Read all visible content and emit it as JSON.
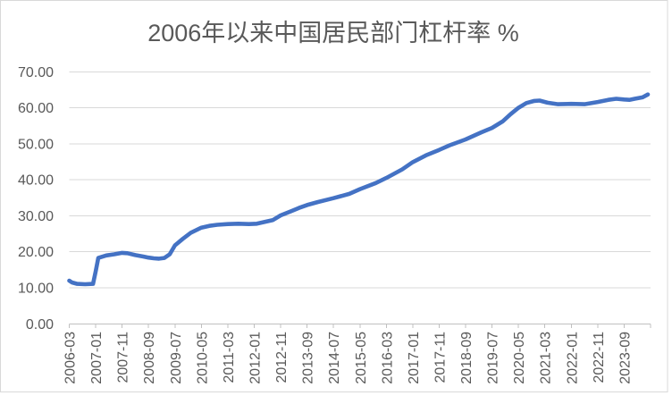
{
  "chart_data": {
    "type": "line",
    "title": "2006年以来中国居民部门杠杆率 %",
    "xlabel": "",
    "ylabel": "",
    "ylim": [
      0,
      70
    ],
    "y_step": 10,
    "y_tick_labels": [
      "0.00",
      "10.00",
      "20.00",
      "30.00",
      "40.00",
      "50.00",
      "60.00",
      "70.00"
    ],
    "x_tick_labels": [
      "2006-03",
      "2007-01",
      "2007-11",
      "2008-09",
      "2009-07",
      "2010-05",
      "2011-03",
      "2012-01",
      "2012-11",
      "2013-09",
      "2014-07",
      "2015-05",
      "2016-03",
      "2017-01",
      "2017-11",
      "2018-09",
      "2019-07",
      "2020-05",
      "2021-03",
      "2022-01",
      "2022-11",
      "2023-09"
    ],
    "x_label_interval_months": 10,
    "x_axis_start": "2006-03",
    "x_axis_end": "2024-07",
    "grid": "horizontal",
    "legend": false,
    "series": [
      {
        "points": [
          [
            "2006-03",
            12.0
          ],
          [
            "2006-04",
            11.5
          ],
          [
            "2006-06",
            11.1
          ],
          [
            "2006-09",
            11.0
          ],
          [
            "2006-12",
            11.1
          ],
          [
            "2007-01",
            14.6
          ],
          [
            "2007-02",
            18.3
          ],
          [
            "2007-05",
            19.0
          ],
          [
            "2007-08",
            19.3
          ],
          [
            "2007-11",
            19.7
          ],
          [
            "2008-01",
            19.6
          ],
          [
            "2008-04",
            19.1
          ],
          [
            "2008-07",
            18.7
          ],
          [
            "2008-09",
            18.4
          ],
          [
            "2008-11",
            18.2
          ],
          [
            "2009-01",
            18.1
          ],
          [
            "2009-03",
            18.3
          ],
          [
            "2009-05",
            19.3
          ],
          [
            "2009-07",
            21.8
          ],
          [
            "2009-10",
            23.6
          ],
          [
            "2010-01",
            25.3
          ],
          [
            "2010-05",
            26.7
          ],
          [
            "2010-08",
            27.2
          ],
          [
            "2010-11",
            27.5
          ],
          [
            "2011-03",
            27.7
          ],
          [
            "2011-07",
            27.8
          ],
          [
            "2011-11",
            27.7
          ],
          [
            "2012-02",
            27.8
          ],
          [
            "2012-05",
            28.3
          ],
          [
            "2012-08",
            28.8
          ],
          [
            "2012-11",
            30.1
          ],
          [
            "2013-03",
            31.3
          ],
          [
            "2013-06",
            32.2
          ],
          [
            "2013-09",
            33.0
          ],
          [
            "2014-01",
            33.8
          ],
          [
            "2014-07",
            34.9
          ],
          [
            "2015-01",
            36.1
          ],
          [
            "2015-05",
            37.4
          ],
          [
            "2015-11",
            39.1
          ],
          [
            "2016-03",
            40.5
          ],
          [
            "2016-09",
            42.9
          ],
          [
            "2017-01",
            44.9
          ],
          [
            "2017-06",
            46.8
          ],
          [
            "2017-11",
            48.3
          ],
          [
            "2018-03",
            49.6
          ],
          [
            "2018-09",
            51.2
          ],
          [
            "2019-03",
            53.2
          ],
          [
            "2019-07",
            54.4
          ],
          [
            "2019-11",
            56.2
          ],
          [
            "2020-02",
            58.2
          ],
          [
            "2020-05",
            60.0
          ],
          [
            "2020-08",
            61.3
          ],
          [
            "2020-11",
            61.9
          ],
          [
            "2021-01",
            62.0
          ],
          [
            "2021-04",
            61.4
          ],
          [
            "2021-08",
            61.0
          ],
          [
            "2022-01",
            61.1
          ],
          [
            "2022-06",
            61.0
          ],
          [
            "2022-11",
            61.6
          ],
          [
            "2023-03",
            62.2
          ],
          [
            "2023-06",
            62.5
          ],
          [
            "2023-09",
            62.3
          ],
          [
            "2023-11",
            62.2
          ],
          [
            "2024-01",
            62.5
          ],
          [
            "2024-04",
            62.9
          ],
          [
            "2024-06",
            63.7
          ]
        ]
      }
    ],
    "colors": {
      "line": "#4472C4",
      "gridline": "#D9D9D9",
      "axis_line": "#C0C0C0",
      "tick_text": "#595959",
      "title_text": "#595959",
      "border": "#D9D9D9",
      "background": "#FFFFFF"
    }
  }
}
